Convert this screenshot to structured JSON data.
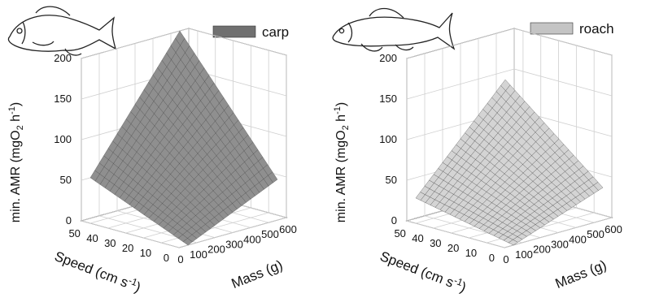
{
  "chart_data": [
    {
      "type": "surface",
      "legend": "carp",
      "legend_position": "top-right",
      "surface_color": "#8f8f8f",
      "ylabel": "min. AMR (mgO2 h-1)",
      "xlabel": "Speed (cm s-1)",
      "zlabel": "Mass (g)",
      "speed_ticks": [
        "0",
        "10",
        "20",
        "30",
        "40",
        "50"
      ],
      "mass_ticks": [
        "0",
        "100",
        "200",
        "300",
        "400",
        "500",
        "600"
      ],
      "amr_ticks": [
        "0",
        "50",
        "100",
        "150",
        "200"
      ],
      "speed_range": [
        0,
        55
      ],
      "mass_range": [
        0,
        600
      ],
      "amr_range": [
        0,
        200
      ],
      "surface_extent": {
        "speed": [
          0,
          55
        ],
        "mass": [
          50,
          550
        ]
      },
      "corner_values": [
        {
          "speed": 0,
          "mass": 50,
          "amr": 0
        },
        {
          "speed": 55,
          "mass": 50,
          "amr": 50
        },
        {
          "speed": 0,
          "mass": 550,
          "amr": 50
        },
        {
          "speed": 55,
          "mass": 550,
          "amr": 200
        }
      ],
      "grid": true
    },
    {
      "type": "surface",
      "legend": "roach",
      "legend_position": "top-right",
      "surface_color": "#d4d4d4",
      "ylabel": "min. AMR (mgO2 h-1)",
      "xlabel": "Speed (cm s-1)",
      "zlabel": "Mass (g)",
      "speed_ticks": [
        "0",
        "10",
        "20",
        "30",
        "40",
        "50"
      ],
      "mass_ticks": [
        "0",
        "100",
        "200",
        "300",
        "400",
        "500",
        "600"
      ],
      "amr_ticks": [
        "0",
        "50",
        "100",
        "150",
        "200"
      ],
      "speed_range": [
        0,
        55
      ],
      "mass_range": [
        0,
        600
      ],
      "amr_range": [
        0,
        200
      ],
      "surface_extent": {
        "speed": [
          0,
          55
        ],
        "mass": [
          50,
          550
        ]
      },
      "corner_values": [
        {
          "speed": 0,
          "mass": 50,
          "amr": 0
        },
        {
          "speed": 55,
          "mass": 50,
          "amr": 25
        },
        {
          "speed": 0,
          "mass": 550,
          "amr": 40
        },
        {
          "speed": 55,
          "mass": 550,
          "amr": 140
        }
      ],
      "grid": true
    }
  ]
}
